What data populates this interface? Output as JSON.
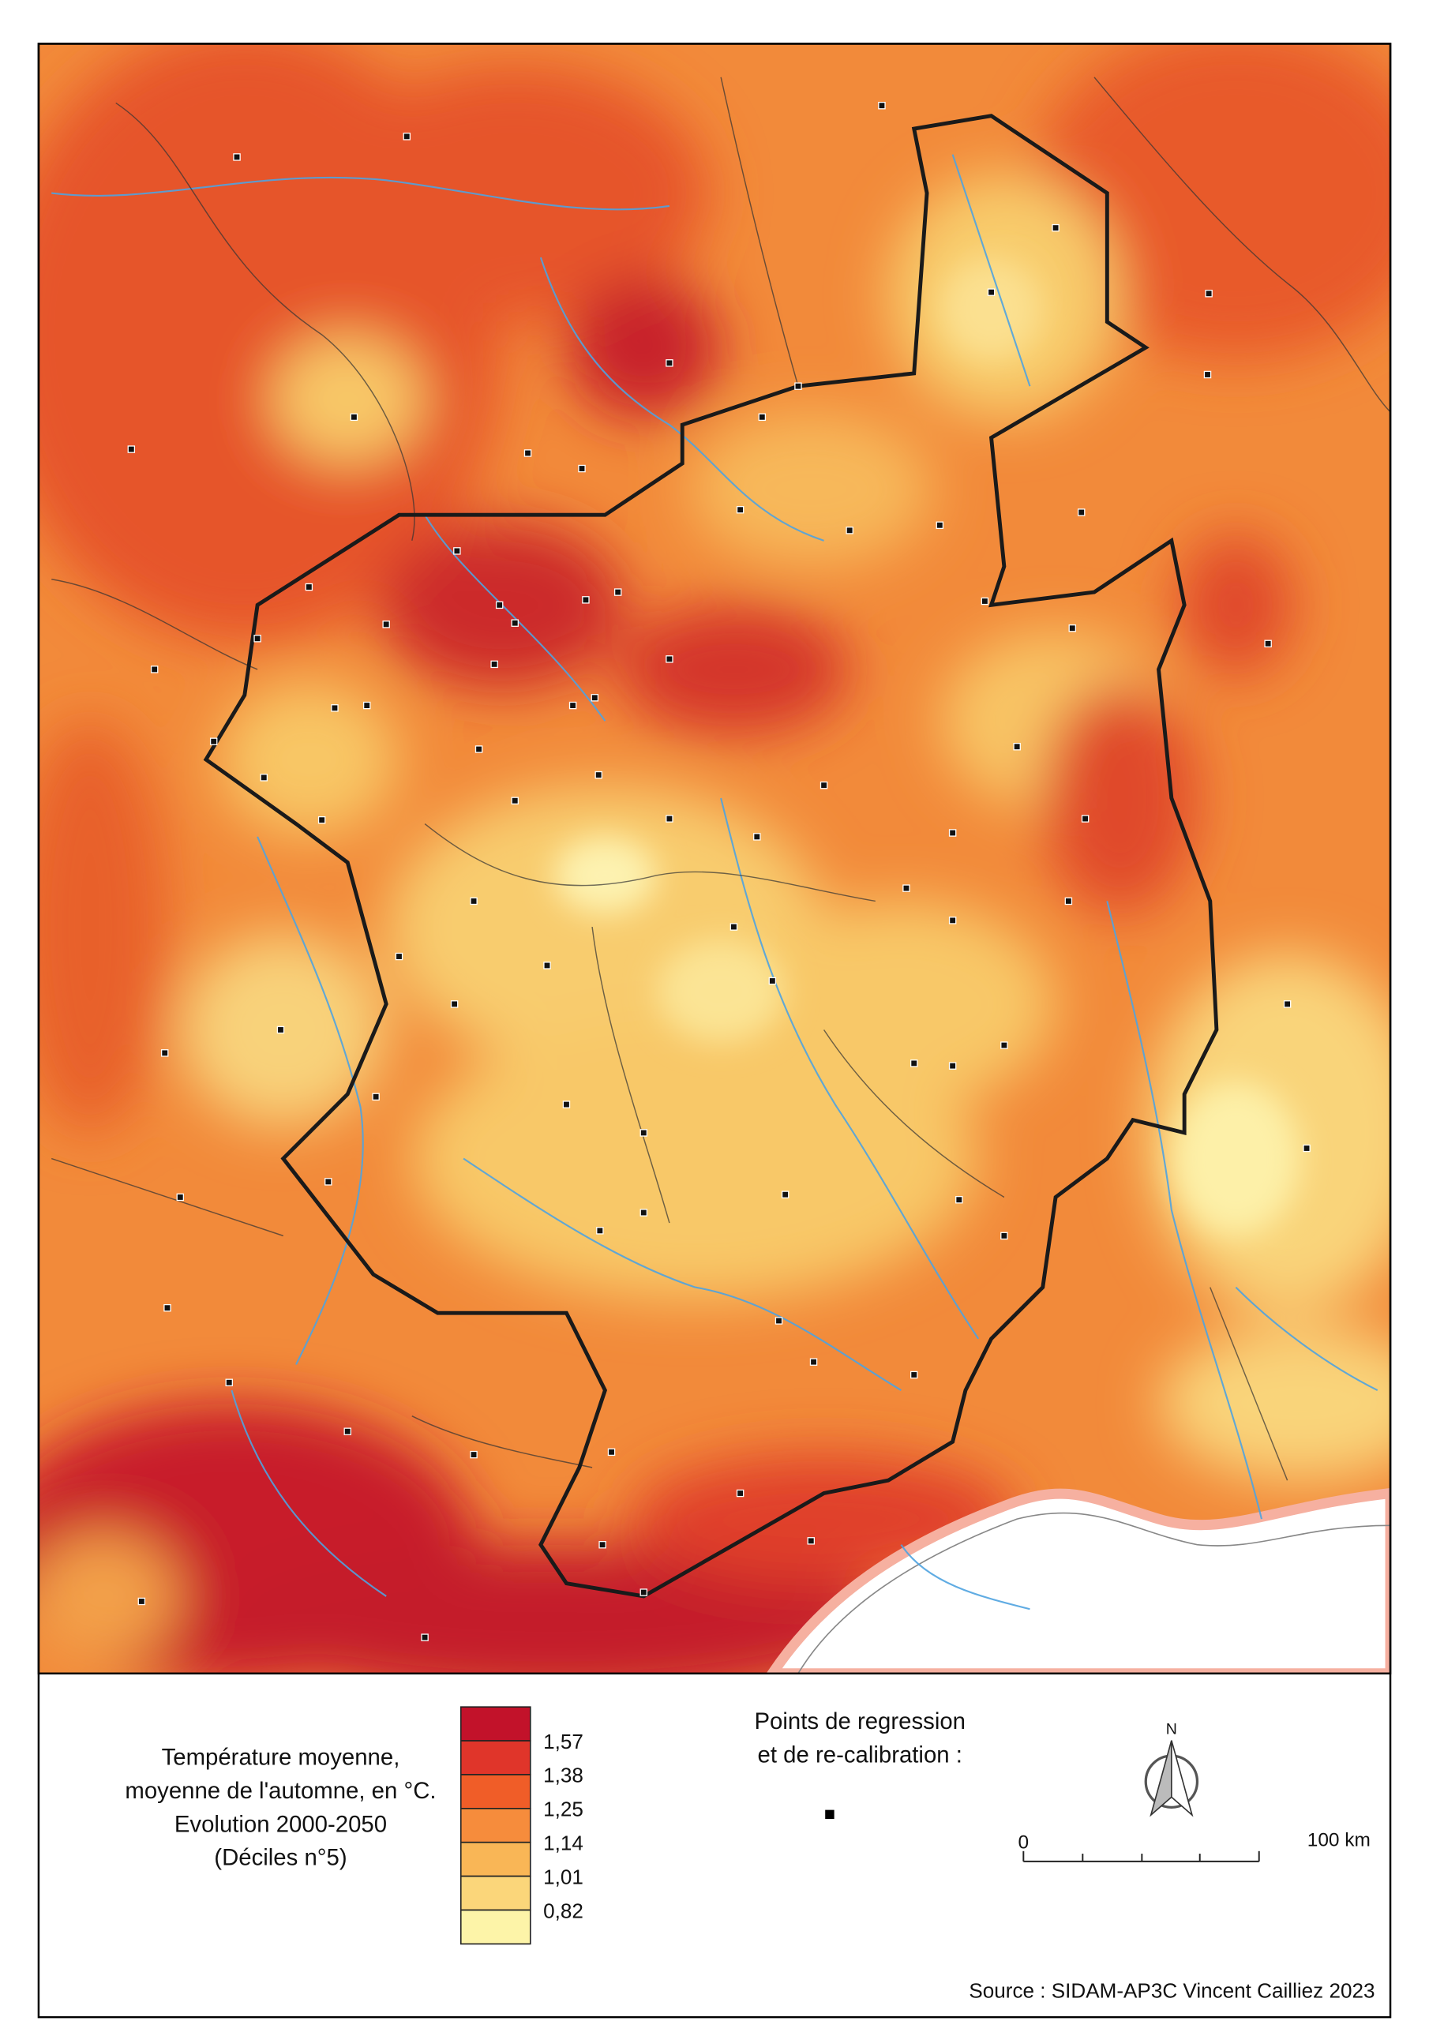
{
  "legend": {
    "title": [
      "Température moyenne,",
      "moyenne de l'automne, en °C.",
      "Evolution 2000-2050",
      "(Déciles n°5)"
    ],
    "classes": [
      "#c2122a",
      "#e0352a",
      "#f05d28",
      "#f68c3c",
      "#f9b656",
      "#fbd67a",
      "#fdf4a8"
    ],
    "labels": [
      "1,57",
      "1,38",
      "1,25",
      "1,14",
      "1,01",
      "0,82"
    ]
  },
  "points_label": [
    "Points de regression",
    "et de re-calibration :"
  ],
  "north": "N",
  "scale": {
    "start": "0",
    "end": "100 km"
  },
  "source": "Source : SIDAM-AP3C Vincent Cailliez 2023"
}
